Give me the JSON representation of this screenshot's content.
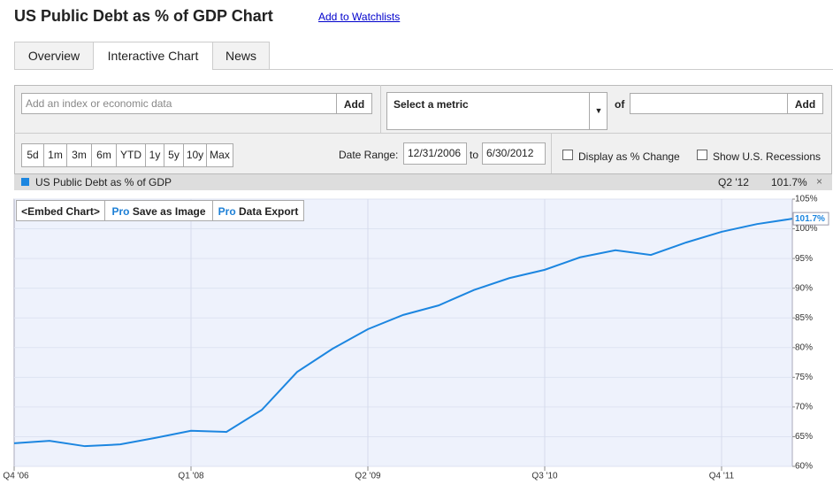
{
  "header": {
    "title": "US Public Debt as % of GDP Chart",
    "watchlist_link": "Add to Watchlists"
  },
  "tabs": [
    "Overview",
    "Interactive Chart",
    "News"
  ],
  "toolbar": {
    "search_placeholder": "Add an index or economic data",
    "add_buttons": [
      "Add",
      "Add"
    ],
    "metric_select": "Select a metric",
    "of": "of"
  },
  "ranges": [
    "5d",
    "1m",
    "3m",
    "6m",
    "YTD",
    "1y",
    "5y",
    "10y",
    "Max"
  ],
  "date_range": {
    "label": "Date Range:",
    "start": "12/31/2006",
    "to": "to",
    "end": "6/30/2012"
  },
  "options": [
    "Display as % Change",
    "Show U.S. Recessions"
  ],
  "legend_bar": {
    "period": "Q2 '12",
    "value": "101.7%",
    "close": "×"
  },
  "chart_buttons": [
    {
      "text": "<Embed Chart>"
    },
    {
      "pro": "Pro",
      "text": "Save as Image"
    },
    {
      "pro": "Pro",
      "text": "Data Export"
    }
  ],
  "chart_data": {
    "type": "line",
    "categories": [
      "Q4 '06",
      null,
      null,
      null,
      null,
      "Q1 '08",
      null,
      null,
      null,
      null,
      "Q2 '09",
      null,
      null,
      null,
      null,
      "Q3 '10",
      null,
      null,
      null,
      null,
      "Q4 '11",
      null,
      null
    ],
    "series": [
      {
        "name": "US Public Debt as % of GDP",
        "color": "#1c86e0",
        "values": [
          63.9,
          64.3,
          63.4,
          63.7,
          64.8,
          66.0,
          65.8,
          69.5,
          75.9,
          79.8,
          83.1,
          85.5,
          87.1,
          89.7,
          91.7,
          93.1,
          95.2,
          96.4,
          95.6,
          97.7,
          99.5,
          100.8,
          101.7
        ],
        "value_labels": [
          null,
          null,
          null,
          null,
          null,
          null,
          null,
          null,
          null,
          null,
          null,
          null,
          null,
          null,
          null,
          null,
          null,
          null,
          null,
          null,
          null,
          null,
          "101.7%"
        ]
      }
    ],
    "ylim": [
      60,
      105
    ],
    "yticks": [
      {
        "value": 60,
        "label": "60%"
      },
      {
        "value": 65,
        "label": "65%"
      },
      {
        "value": 70,
        "label": "70%"
      },
      {
        "value": 75,
        "label": "75%"
      },
      {
        "value": 80,
        "label": "80%"
      },
      {
        "value": 85,
        "label": "85%"
      },
      {
        "value": 90,
        "label": "90%"
      },
      {
        "value": 95,
        "label": "95%"
      },
      {
        "value": 100,
        "label": "100%"
      },
      {
        "value": 105,
        "label": "105%"
      }
    ],
    "grid": true
  }
}
